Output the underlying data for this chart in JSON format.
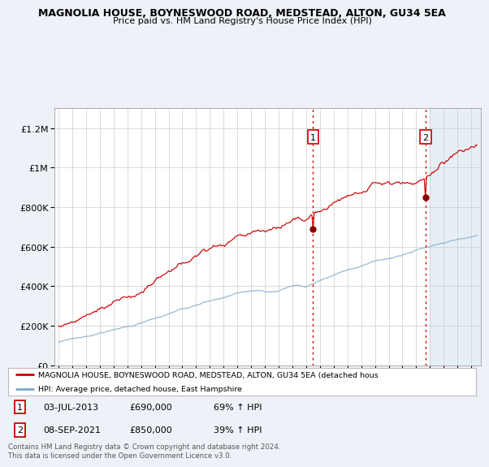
{
  "title1": "MAGNOLIA HOUSE, BOYNESWOOD ROAD, MEDSTEAD, ALTON, GU34 5EA",
  "title2": "Price paid vs. HM Land Registry's House Price Index (HPI)",
  "background_color": "#eef2f8",
  "plot_bg": "#ffffff",
  "legend_line1": "MAGNOLIA HOUSE, BOYNESWOOD ROAD, MEDSTEAD, ALTON, GU34 5EA (detached hous",
  "legend_line2": "HPI: Average price, detached house, East Hampshire",
  "annotation1": {
    "label": "1",
    "date": "03-JUL-2013",
    "price": "£690,000",
    "hpi": "69% ↑ HPI"
  },
  "annotation2": {
    "label": "2",
    "date": "08-SEP-2021",
    "price": "£850,000",
    "hpi": "39% ↑ HPI"
  },
  "footnote": "Contains HM Land Registry data © Crown copyright and database right 2024.\nThis data is licensed under the Open Government Licence v3.0.",
  "red_color": "#cc0000",
  "blue_color": "#7aaace",
  "dot_color": "#880000",
  "ylim_min": 0,
  "ylim_max": 1300000,
  "yticks": [
    0,
    200000,
    400000,
    600000,
    800000,
    1000000,
    1200000
  ],
  "ytick_labels": [
    "£0",
    "£200K",
    "£400K",
    "£600K",
    "£800K",
    "£1M",
    "£1.2M"
  ],
  "year_start": 1995,
  "year_end": 2025
}
